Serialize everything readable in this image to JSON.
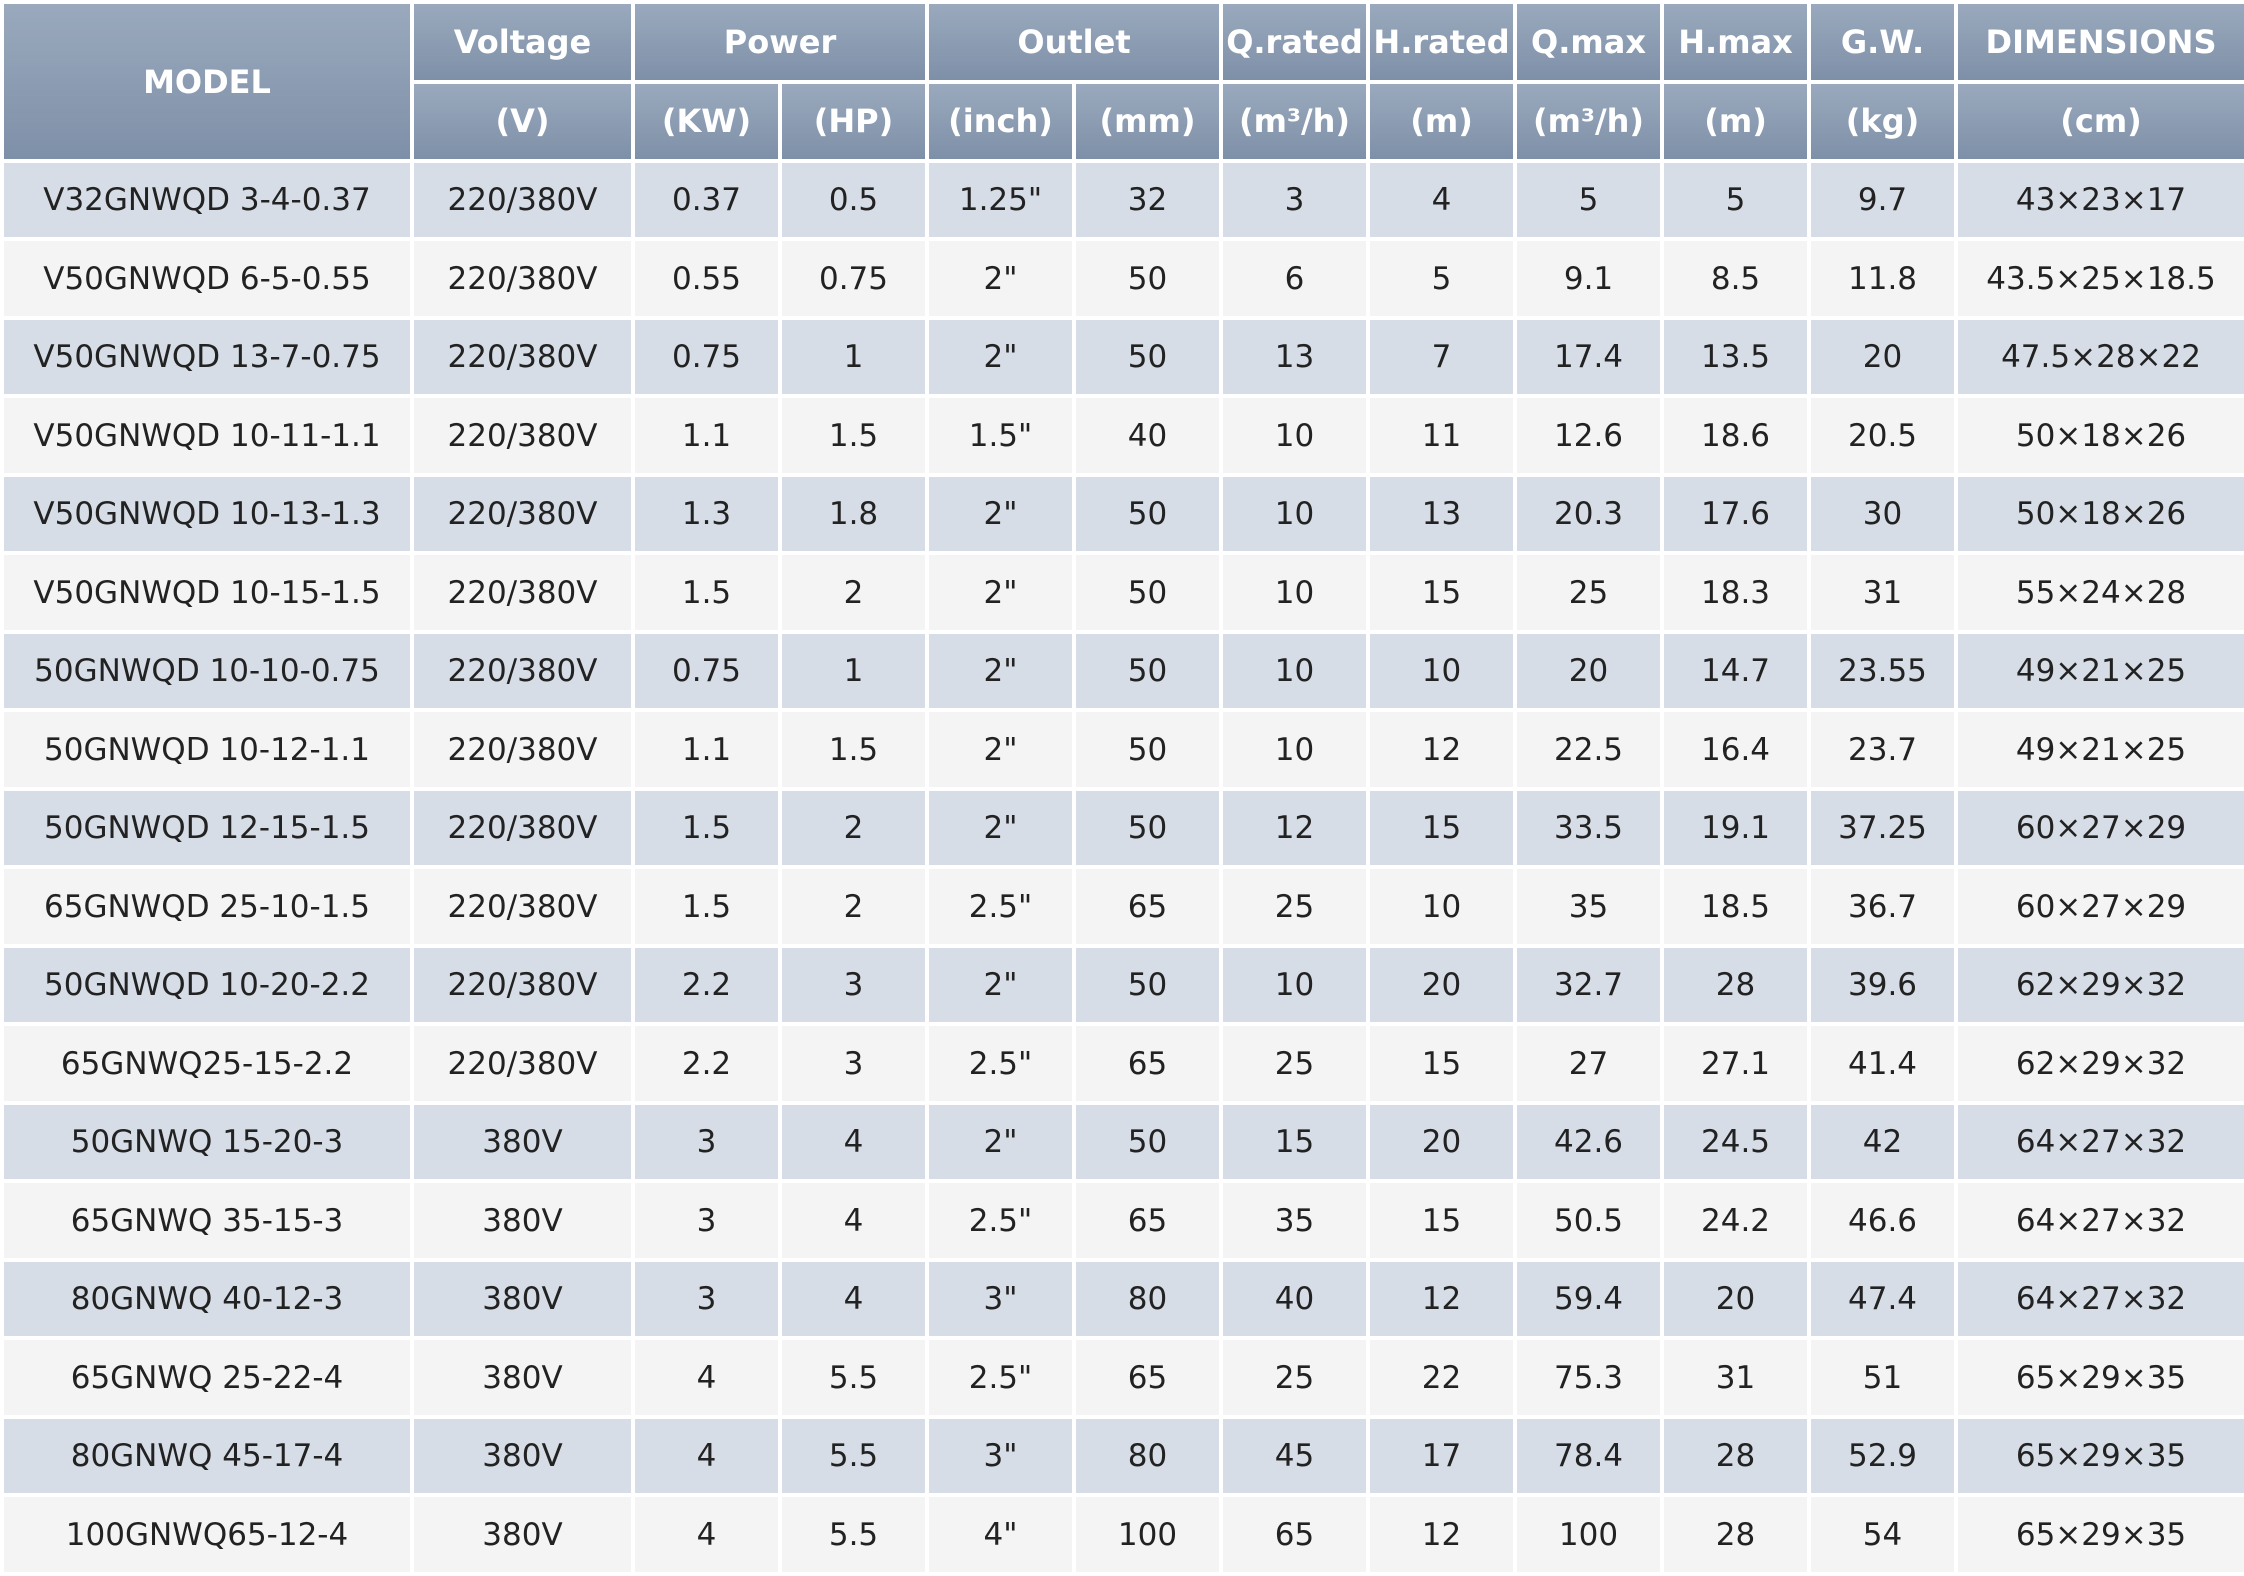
{
  "table": {
    "header_top": [
      {
        "text": "MODEL",
        "rowspan": 2,
        "colspan": 1
      },
      {
        "text": "Voltage",
        "rowspan": 1,
        "colspan": 1
      },
      {
        "text": "Power",
        "rowspan": 1,
        "colspan": 2
      },
      {
        "text": "Outlet",
        "rowspan": 1,
        "colspan": 2
      },
      {
        "text": "Q.rated",
        "rowspan": 1,
        "colspan": 1
      },
      {
        "text": "H.rated",
        "rowspan": 1,
        "colspan": 1
      },
      {
        "text": "Q.max",
        "rowspan": 1,
        "colspan": 1
      },
      {
        "text": "H.max",
        "rowspan": 1,
        "colspan": 1
      },
      {
        "text": "G.W.",
        "rowspan": 1,
        "colspan": 1
      },
      {
        "text": "DIMENSIONS",
        "rowspan": 1,
        "colspan": 1
      }
    ],
    "header_units": [
      "(V)",
      "(KW)",
      "(HP)",
      "(inch)",
      "(mm)",
      "(m³/h)",
      "(m)",
      "(m³/h)",
      "(m)",
      "(kg)",
      "(cm)"
    ],
    "rows": [
      [
        "V32GNWQD 3-4-0.37",
        "220/380V",
        "0.37",
        "0.5",
        "1.25\"",
        "32",
        "3",
        "4",
        "5",
        "5",
        "9.7",
        "43×23×17"
      ],
      [
        "V50GNWQD 6-5-0.55",
        "220/380V",
        "0.55",
        "0.75",
        "2\"",
        "50",
        "6",
        "5",
        "9.1",
        "8.5",
        "11.8",
        "43.5×25×18.5"
      ],
      [
        "V50GNWQD 13-7-0.75",
        "220/380V",
        "0.75",
        "1",
        "2\"",
        "50",
        "13",
        "7",
        "17.4",
        "13.5",
        "20",
        "47.5×28×22"
      ],
      [
        "V50GNWQD 10-11-1.1",
        "220/380V",
        "1.1",
        "1.5",
        "1.5\"",
        "40",
        "10",
        "11",
        "12.6",
        "18.6",
        "20.5",
        "50×18×26"
      ],
      [
        "V50GNWQD 10-13-1.3",
        "220/380V",
        "1.3",
        "1.8",
        "2\"",
        "50",
        "10",
        "13",
        "20.3",
        "17.6",
        "30",
        "50×18×26"
      ],
      [
        "V50GNWQD 10-15-1.5",
        "220/380V",
        "1.5",
        "2",
        "2\"",
        "50",
        "10",
        "15",
        "25",
        "18.3",
        "31",
        "55×24×28"
      ],
      [
        "50GNWQD 10-10-0.75",
        "220/380V",
        "0.75",
        "1",
        "2\"",
        "50",
        "10",
        "10",
        "20",
        "14.7",
        "23.55",
        "49×21×25"
      ],
      [
        "50GNWQD 10-12-1.1",
        "220/380V",
        "1.1",
        "1.5",
        "2\"",
        "50",
        "10",
        "12",
        "22.5",
        "16.4",
        "23.7",
        "49×21×25"
      ],
      [
        "50GNWQD 12-15-1.5",
        "220/380V",
        "1.5",
        "2",
        "2\"",
        "50",
        "12",
        "15",
        "33.5",
        "19.1",
        "37.25",
        "60×27×29"
      ],
      [
        "65GNWQD 25-10-1.5",
        "220/380V",
        "1.5",
        "2",
        "2.5\"",
        "65",
        "25",
        "10",
        "35",
        "18.5",
        "36.7",
        "60×27×29"
      ],
      [
        "50GNWQD 10-20-2.2",
        "220/380V",
        "2.2",
        "3",
        "2\"",
        "50",
        "10",
        "20",
        "32.7",
        "28",
        "39.6",
        "62×29×32"
      ],
      [
        "65GNWQ25-15-2.2",
        "220/380V",
        "2.2",
        "3",
        "2.5\"",
        "65",
        "25",
        "15",
        "27",
        "27.1",
        "41.4",
        "62×29×32"
      ],
      [
        "50GNWQ 15-20-3",
        "380V",
        "3",
        "4",
        "2\"",
        "50",
        "15",
        "20",
        "42.6",
        "24.5",
        "42",
        "64×27×32"
      ],
      [
        "65GNWQ 35-15-3",
        "380V",
        "3",
        "4",
        "2.5\"",
        "65",
        "35",
        "15",
        "50.5",
        "24.2",
        "46.6",
        "64×27×32"
      ],
      [
        "80GNWQ 40-12-3",
        "380V",
        "3",
        "4",
        "3\"",
        "80",
        "40",
        "12",
        "59.4",
        "20",
        "47.4",
        "64×27×32"
      ],
      [
        "65GNWQ 25-22-4",
        "380V",
        "4",
        "5.5",
        "2.5\"",
        "65",
        "25",
        "22",
        "75.3",
        "31",
        "51",
        "65×29×35"
      ],
      [
        "80GNWQ 45-17-4",
        "380V",
        "4",
        "5.5",
        "3\"",
        "80",
        "45",
        "17",
        "78.4",
        "28",
        "52.9",
        "65×29×35"
      ],
      [
        "100GNWQ65-12-4",
        "380V",
        "4",
        "5.5",
        "4\"",
        "100",
        "65",
        "12",
        "100",
        "28",
        "54",
        "65×29×35"
      ]
    ]
  }
}
